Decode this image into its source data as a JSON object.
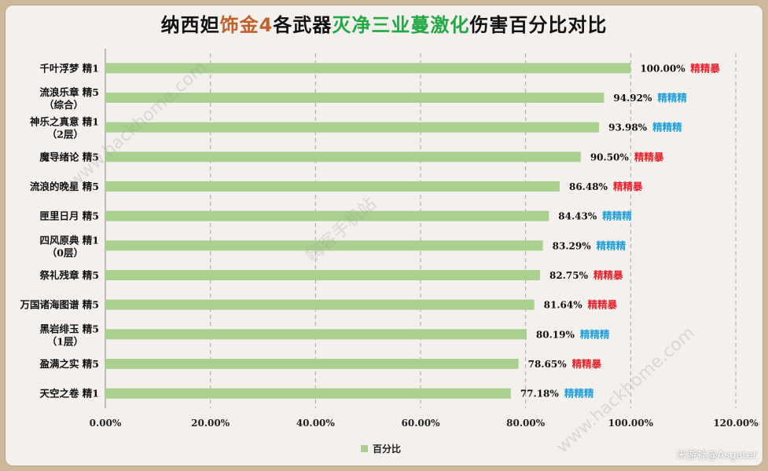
{
  "title": {
    "part1": "纳西妲",
    "part2": "饰金4",
    "part3": "各武器",
    "part4": "灭净三业蔓激化",
    "part5": "伤害百分比对比"
  },
  "colors": {
    "bar": "#a9d08e",
    "crit_label": "#e8212b",
    "em_label": "#1f9fd8",
    "title_brown": "#c0602a",
    "title_green": "#22a845"
  },
  "watermark": {
    "text1": "www.hackhome.com",
    "text2": "嗨客手机站",
    "text3": "www.hackhome.com"
  },
  "credit": "米游社@Asgater",
  "chart_data": {
    "type": "bar",
    "orientation": "horizontal",
    "categories": [
      [
        "千叶浮梦 精1"
      ],
      [
        "流浪乐章 精5",
        "（综合）"
      ],
      [
        "神乐之真意 精1",
        "（2层）"
      ],
      [
        "魔导绪论 精5"
      ],
      [
        "流浪的晚星 精5"
      ],
      [
        "匣里日月 精5"
      ],
      [
        "四风原典 精1",
        "（0层）"
      ],
      [
        "祭礼残章 精5"
      ],
      [
        "万国诸海图谱 精5"
      ],
      [
        "黑岩绯玉 精5",
        "（1层）"
      ],
      [
        "盈满之实 精5"
      ],
      [
        "天空之卷 精1"
      ]
    ],
    "values": [
      100.0,
      94.92,
      93.98,
      90.5,
      86.48,
      84.43,
      83.29,
      82.75,
      81.64,
      80.19,
      78.65,
      77.18
    ],
    "value_labels": [
      "100.00%",
      "94.92%",
      "93.98%",
      "90.50%",
      "86.48%",
      "84.43%",
      "83.29%",
      "82.75%",
      "81.64%",
      "80.19%",
      "78.65%",
      "77.18%"
    ],
    "annotations": [
      "精精暴",
      "精精精",
      "精精精",
      "精精暴",
      "精精暴",
      "精精精",
      "精精精",
      "精精暴",
      "精精暴",
      "精精精",
      "精精暴",
      "精精精"
    ],
    "annotation_types": [
      "crit",
      "em",
      "em",
      "crit",
      "crit",
      "em",
      "em",
      "crit",
      "crit",
      "em",
      "crit",
      "em"
    ],
    "series": [
      {
        "name": "百分比",
        "values": [
          100.0,
          94.92,
          93.98,
          90.5,
          86.48,
          84.43,
          83.29,
          82.75,
          81.64,
          80.19,
          78.65,
          77.18
        ]
      }
    ],
    "xlim": [
      0,
      120
    ],
    "x_ticks": [
      "0.00%",
      "20.00%",
      "40.00%",
      "60.00%",
      "80.00%",
      "100.00%",
      "120.00%"
    ],
    "grid": "vertical-dashed",
    "legend_position": "bottom"
  }
}
